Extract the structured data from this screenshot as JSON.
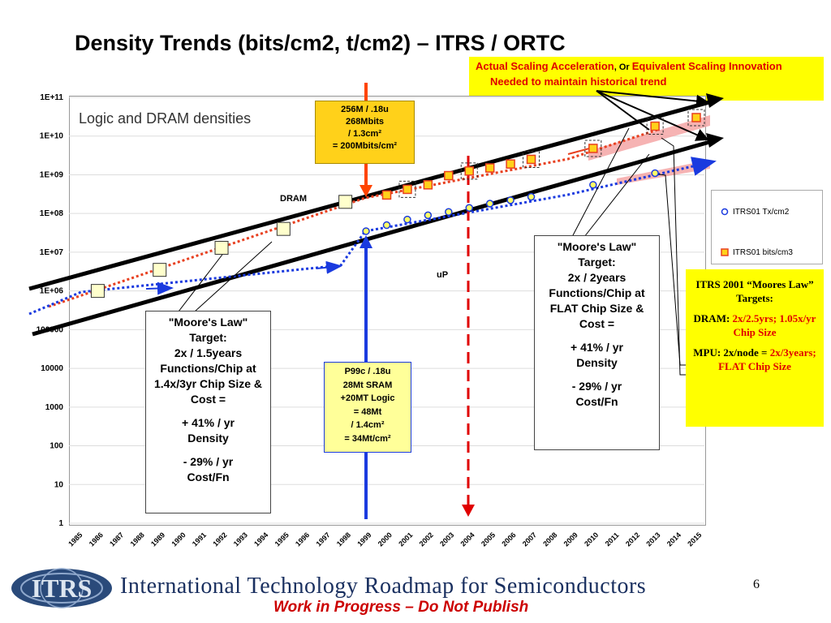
{
  "slide": {
    "title": "Density Trends (bits/cm2, t/cm2) – ITRS / ORTC",
    "page_number": "6",
    "footer_title": "International Technology Roadmap for Semiconductors",
    "footer_subtitle": "Work in Progress – Do Not Publish",
    "logo_text": "ITRS"
  },
  "chart_data": {
    "type": "scatter",
    "title": "Logic and DRAM densities",
    "y_scale": "log",
    "ylim": [
      1,
      100000000000
    ],
    "y_ticks": [
      "1E+11",
      "1E+10",
      "1E+09",
      "1E+08",
      "1E+07",
      "1E+06",
      "100000",
      "10000",
      "1000",
      "100",
      "10",
      "1"
    ],
    "x_ticks": [
      "1985",
      "1986",
      "1987",
      "1988",
      "1989",
      "1990",
      "1991",
      "1992",
      "1993",
      "1994",
      "1995",
      "1996",
      "1997",
      "1998",
      "1999",
      "2000",
      "2001",
      "2002",
      "2003",
      "2004",
      "2005",
      "2006",
      "2007",
      "2008",
      "2009",
      "2010",
      "2011",
      "2012",
      "2013",
      "2014",
      "2015"
    ],
    "series": [
      {
        "name": "ITRS01 bits/cm3",
        "color": "#ff8c00",
        "x": [
          1986,
          1989,
          1992,
          1995,
          1998,
          2000,
          2001,
          2002,
          2003,
          2004,
          2005,
          2006,
          2007,
          2010,
          2013,
          2015
        ],
        "y": [
          1000000,
          3500000,
          13000000,
          40000000,
          200000000,
          300000000,
          420000000,
          550000000,
          950000000,
          1250000000,
          1500000000,
          1900000000,
          2500000000,
          4800000000,
          18000000000,
          30000000000
        ]
      },
      {
        "name": "ITRS01 Tx/cm2",
        "color": "#0000cc",
        "x": [
          1999,
          2000,
          2001,
          2002,
          2003,
          2004,
          2005,
          2006,
          2007,
          2010,
          2013
        ],
        "y": [
          35000000,
          50000000,
          70000000,
          90000000,
          110000000,
          140000000,
          180000000,
          220000000,
          270000000,
          550000000,
          1100000000
        ]
      }
    ],
    "labels": {
      "dram": "DRAM",
      "up": "uP"
    },
    "legend_position": "right"
  },
  "annotations": {
    "top_note": {
      "part1": "Actual Scaling Acceleration",
      "part2": ", Or ",
      "part3": "Equivalent Scaling Innovation",
      "part4": "Needed to maintain historical trend"
    },
    "dram_box": [
      "256M / .18u",
      "268Mbits",
      "/ 1.3cm²",
      "= 200Mbits/cm²"
    ],
    "mpu_box": [
      "P99c / .18u",
      "28Mt SRAM",
      "+20MT Logic",
      "= 48Mt",
      "/ 1.4cm²",
      "= 34Mt/cm²"
    ],
    "moore_left": [
      "\"Moore's Law\"",
      "Target:",
      "2x / 1.5years",
      "Functions/Chip at",
      "1.4x/3yr Chip Size &",
      "Cost =",
      "",
      "+ 41% / yr",
      "Density",
      "",
      "- 29% / yr",
      "Cost/Fn"
    ],
    "moore_right": [
      "\"Moore's Law\"",
      "Target:",
      "2x / 2years",
      "Functions/Chip at",
      "FLAT Chip Size &",
      "Cost =",
      "",
      "+ 41% / yr",
      "Density",
      "",
      "- 29% / yr",
      "Cost/Fn"
    ],
    "itrs_box": {
      "heading": "ITRS 2001  “Moores Law” Targets:",
      "dram_label": "DRAM: ",
      "dram_value": "2x/2.5yrs; 1.05x/yr Chip Size",
      "mpu_label": "MPU: 2x/node = ",
      "mpu_value": "2x/3years;       FLAT Chip Size"
    }
  }
}
